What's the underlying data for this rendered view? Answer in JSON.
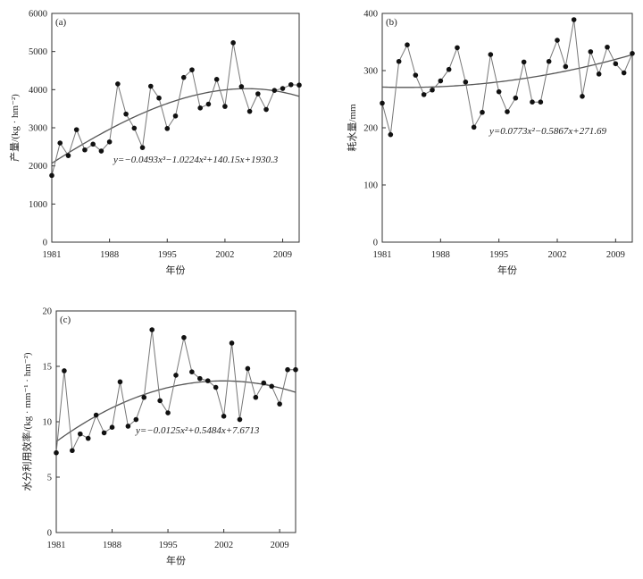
{
  "chart_data": [
    {
      "type": "line",
      "panel_label": "(a)",
      "xlabel": "年份",
      "ylabel": "产量/(kg · hm⁻²)",
      "xlim": [
        1981,
        2011
      ],
      "ylim": [
        0,
        6000
      ],
      "x_ticks": [
        1981,
        1988,
        1995,
        2002,
        2009
      ],
      "y_ticks": [
        0,
        1000,
        2000,
        3000,
        4000,
        5000,
        6000
      ],
      "x": [
        1981,
        1982,
        1983,
        1984,
        1985,
        1986,
        1987,
        1988,
        1989,
        1990,
        1991,
        1992,
        1993,
        1994,
        1995,
        1996,
        1997,
        1998,
        1999,
        2000,
        2001,
        2002,
        2003,
        2004,
        2005,
        2006,
        2007,
        2008,
        2009,
        2010,
        2011
      ],
      "series": [
        {
          "values": [
            1750,
            2600,
            2270,
            2950,
            2420,
            2570,
            2390,
            2630,
            4150,
            3360,
            2990,
            2480,
            4090,
            3780,
            2980,
            3310,
            4320,
            4520,
            3520,
            3620,
            4270,
            3560,
            5230,
            4080,
            3430,
            3890,
            3480,
            3980,
            4030,
            4130,
            4120
          ]
        }
      ],
      "trend_coefficients": [
        -0.0493,
        -1.0224,
        140.15,
        1930.3
      ],
      "equation": "y=−0.0493x³−1.0224x²+140.15x+1930.3"
    },
    {
      "type": "line",
      "panel_label": "(b)",
      "xlabel": "年份",
      "ylabel": "耗水量/mm",
      "xlim": [
        1981,
        2011
      ],
      "ylim": [
        0,
        400
      ],
      "x_ticks": [
        1981,
        1988,
        1995,
        2002,
        2009
      ],
      "y_ticks": [
        0,
        100,
        200,
        300,
        400
      ],
      "x": [
        1981,
        1982,
        1983,
        1984,
        1985,
        1986,
        1987,
        1988,
        1989,
        1990,
        1991,
        1992,
        1993,
        1994,
        1995,
        1996,
        1997,
        1998,
        1999,
        2000,
        2001,
        2002,
        2003,
        2004,
        2005,
        2006,
        2007,
        2008,
        2009,
        2010,
        2011
      ],
      "series": [
        {
          "values": [
            243,
            188,
            316,
            345,
            292,
            258,
            266,
            282,
            302,
            340,
            280,
            201,
            227,
            328,
            263,
            228,
            252,
            315,
            245,
            245,
            316,
            353,
            307,
            389,
            255,
            333,
            294,
            341,
            312,
            296,
            330
          ]
        }
      ],
      "trend_coefficients": [
        0.0773,
        -0.5867,
        271.69
      ],
      "equation": "y=0.0773x²−0.5867x+271.69"
    },
    {
      "type": "line",
      "panel_label": "(c)",
      "xlabel": "年份",
      "ylabel": "水分利用效率/(kg · mm⁻¹ · hm⁻²)",
      "xlim": [
        1981,
        2011
      ],
      "ylim": [
        0,
        20
      ],
      "x_ticks": [
        1981,
        1988,
        1995,
        2002,
        2009
      ],
      "y_ticks": [
        0,
        5,
        10,
        15,
        20
      ],
      "x": [
        1981,
        1982,
        1983,
        1984,
        1985,
        1986,
        1987,
        1988,
        1989,
        1990,
        1991,
        1992,
        1993,
        1994,
        1995,
        1996,
        1997,
        1998,
        1999,
        2000,
        2001,
        2002,
        2003,
        2004,
        2005,
        2006,
        2007,
        2008,
        2009,
        2010,
        2011
      ],
      "series": [
        {
          "values": [
            7.2,
            14.6,
            7.4,
            8.9,
            8.5,
            10.6,
            9.0,
            9.5,
            13.6,
            9.6,
            10.2,
            12.2,
            18.3,
            11.9,
            10.8,
            14.2,
            17.6,
            14.5,
            13.9,
            13.7,
            13.1,
            10.5,
            17.1,
            10.2,
            14.8,
            12.2,
            13.5,
            13.2,
            11.6,
            14.7,
            14.7
          ]
        }
      ],
      "trend_coefficients": [
        -0.0125,
        0.5484,
        7.6713
      ],
      "equation": "y=−0.0125x²+0.5484x+7.6713"
    }
  ]
}
